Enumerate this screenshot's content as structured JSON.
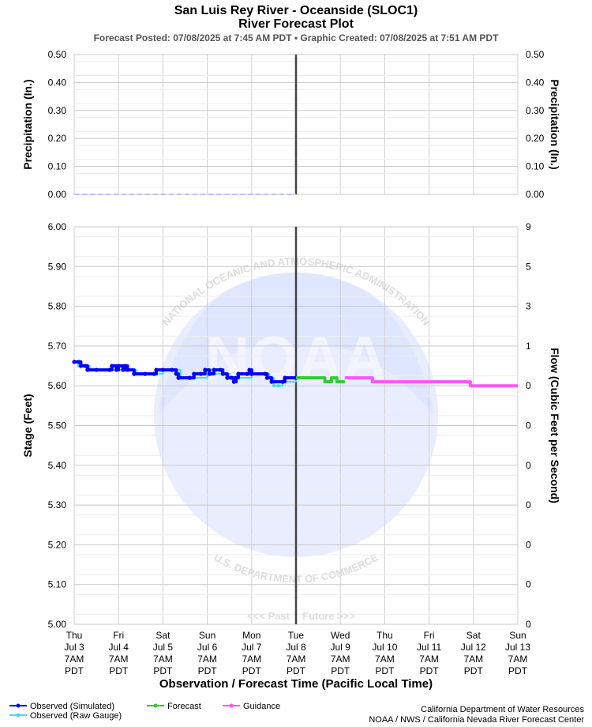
{
  "chart_data": {
    "type": "line",
    "title": "San Luis Rey River - Oceanside (SLOC1)",
    "subtitle": "River Forecast Plot",
    "posted_line": "Forecast Posted: 07/08/2025 at 7:45 AM PDT  •  Graphic Created: 07/08/2025 at 7:51 AM PDT",
    "x_axis_label": "Observation / Forecast Time (Pacific Local Time)",
    "x_ticks": [
      {
        "day": "Thu",
        "date": "Jul 3",
        "time": "7AM",
        "tz": "PDT"
      },
      {
        "day": "Fri",
        "date": "Jul 4",
        "time": "7AM",
        "tz": "PDT"
      },
      {
        "day": "Sat",
        "date": "Jul 5",
        "time": "7AM",
        "tz": "PDT"
      },
      {
        "day": "Sun",
        "date": "Jul 6",
        "time": "7AM",
        "tz": "PDT"
      },
      {
        "day": "Mon",
        "date": "Jul 7",
        "time": "7AM",
        "tz": "PDT"
      },
      {
        "day": "Tue",
        "date": "Jul 8",
        "time": "7AM",
        "tz": "PDT"
      },
      {
        "day": "Wed",
        "date": "Jul 9",
        "time": "7AM",
        "tz": "PDT"
      },
      {
        "day": "Thu",
        "date": "Jul 10",
        "time": "7AM",
        "tz": "PDT"
      },
      {
        "day": "Fri",
        "date": "Jul 11",
        "time": "7AM",
        "tz": "PDT"
      },
      {
        "day": "Sat",
        "date": "Jul 12",
        "time": "7AM",
        "tz": "PDT"
      },
      {
        "day": "Sun",
        "date": "Jul 13",
        "time": "7AM",
        "tz": "PDT"
      }
    ],
    "now_index": 5,
    "past_label": "<<< Past",
    "future_label": "Future >>>",
    "precip_panel": {
      "ylabel_left": "Precipitation (In.)",
      "ylabel_right": "Precipitation (In.)",
      "ylim": [
        0,
        0.5
      ],
      "yticks": [
        "0.50",
        "0.40",
        "0.30",
        "0.20",
        "0.10",
        "0.00"
      ],
      "baseline_value": 0.0
    },
    "stage_panel": {
      "ylabel_left": "Stage (Feet)",
      "ylabel_right": "Flow (Cubic Feet per Second)",
      "ylim": [
        5.0,
        6.0
      ],
      "yticks": [
        "6.00",
        "5.90",
        "5.80",
        "5.70",
        "5.60",
        "5.50",
        "5.40",
        "5.30",
        "5.20",
        "5.10",
        "5.00"
      ],
      "flow_ticks": [
        "9",
        "5",
        "3",
        "1",
        "0",
        "0",
        "0",
        "0",
        "0",
        "0",
        "0"
      ]
    },
    "series": [
      {
        "name": "Observed (Simulated)",
        "color": "#0000ff",
        "points": [
          [
            0.0,
            5.66
          ],
          [
            0.1,
            5.66
          ],
          [
            0.15,
            5.65
          ],
          [
            0.25,
            5.65
          ],
          [
            0.3,
            5.64
          ],
          [
            0.5,
            5.64
          ],
          [
            0.8,
            5.64
          ],
          [
            0.85,
            5.65
          ],
          [
            0.95,
            5.64
          ],
          [
            1.0,
            5.65
          ],
          [
            1.1,
            5.64
          ],
          [
            1.15,
            5.65
          ],
          [
            1.2,
            5.64
          ],
          [
            1.35,
            5.63
          ],
          [
            1.6,
            5.63
          ],
          [
            1.8,
            5.63
          ],
          [
            1.85,
            5.64
          ],
          [
            2.0,
            5.64
          ],
          [
            2.2,
            5.64
          ],
          [
            2.3,
            5.63
          ],
          [
            2.35,
            5.62
          ],
          [
            2.6,
            5.62
          ],
          [
            2.7,
            5.63
          ],
          [
            2.85,
            5.63
          ],
          [
            2.95,
            5.64
          ],
          [
            3.05,
            5.63
          ],
          [
            3.15,
            5.64
          ],
          [
            3.3,
            5.64
          ],
          [
            3.35,
            5.63
          ],
          [
            3.45,
            5.62
          ],
          [
            3.55,
            5.62
          ],
          [
            3.6,
            5.61
          ],
          [
            3.65,
            5.62
          ],
          [
            3.7,
            5.63
          ],
          [
            3.9,
            5.63
          ],
          [
            3.95,
            5.64
          ],
          [
            4.0,
            5.63
          ],
          [
            4.3,
            5.63
          ],
          [
            4.35,
            5.62
          ],
          [
            4.45,
            5.61
          ],
          [
            4.7,
            5.61
          ],
          [
            4.75,
            5.62
          ],
          [
            5.0,
            5.62
          ]
        ]
      },
      {
        "name": "Observed (Raw Gauge)",
        "color": "#33e0f0",
        "points": [
          [
            0.0,
            5.66
          ],
          [
            0.1,
            5.65
          ],
          [
            0.3,
            5.65
          ],
          [
            0.35,
            5.64
          ],
          [
            1.0,
            5.64
          ],
          [
            1.1,
            5.64
          ],
          [
            1.2,
            5.64
          ],
          [
            1.4,
            5.63
          ],
          [
            2.0,
            5.64
          ],
          [
            2.4,
            5.62
          ],
          [
            3.0,
            5.63
          ],
          [
            3.5,
            5.62
          ],
          [
            4.0,
            5.63
          ],
          [
            4.4,
            5.62
          ],
          [
            4.5,
            5.6
          ],
          [
            4.6,
            5.6
          ],
          [
            4.7,
            5.61
          ],
          [
            5.0,
            5.62
          ]
        ]
      },
      {
        "name": "Forecast",
        "color": "#33cc33",
        "points": [
          [
            5.0,
            5.62
          ],
          [
            5.6,
            5.62
          ],
          [
            5.65,
            5.61
          ],
          [
            5.75,
            5.61
          ],
          [
            5.8,
            5.62
          ],
          [
            5.88,
            5.62
          ],
          [
            5.92,
            5.61
          ],
          [
            6.1,
            5.61
          ]
        ]
      },
      {
        "name": "Guidance",
        "color": "#ff55ff",
        "points": [
          [
            6.1,
            5.62
          ],
          [
            6.7,
            5.62
          ],
          [
            6.72,
            5.61
          ],
          [
            8.9,
            5.61
          ],
          [
            8.93,
            5.6
          ],
          [
            10.0,
            5.6
          ]
        ]
      }
    ],
    "legend": [
      {
        "label": "Observed (Simulated)",
        "color": "#0000ff"
      },
      {
        "label": "Observed (Raw Gauge)",
        "color": "#33e0f0"
      },
      {
        "label": "Forecast",
        "color": "#33cc33"
      },
      {
        "label": "Guidance",
        "color": "#ff55ff"
      }
    ],
    "credits": [
      "California Department of Water Resources",
      "NOAA / NWS / California Nevada River Forecast Center"
    ],
    "watermark": {
      "logo_text": "NOAA",
      "ring_top": "NATIONAL OCEANIC AND ATMOSPHERIC ADMINISTRATION",
      "ring_bottom": "U.S. DEPARTMENT OF COMMERCE"
    }
  }
}
